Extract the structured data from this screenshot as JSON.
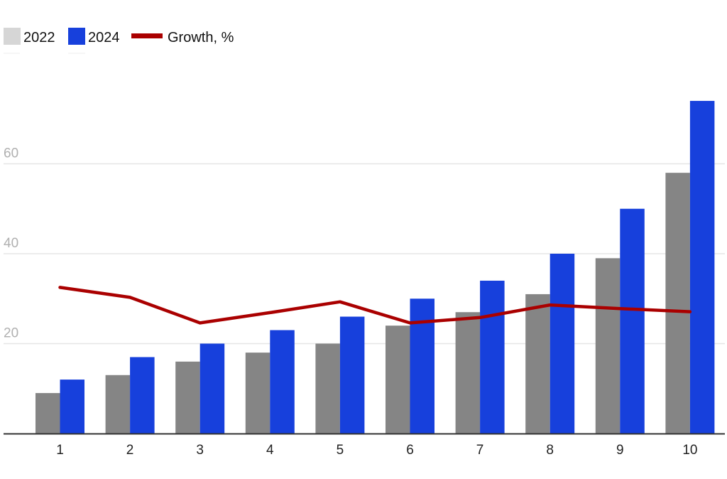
{
  "chart_data": {
    "type": "bar",
    "categories": [
      "1",
      "2",
      "3",
      "4",
      "5",
      "6",
      "7",
      "8",
      "9",
      "10"
    ],
    "series": [
      {
        "name": "2022",
        "type": "bar",
        "color": "#858585",
        "values": [
          9,
          13,
          16,
          18,
          20,
          24,
          27,
          31,
          39,
          58
        ]
      },
      {
        "name": "2024",
        "type": "bar",
        "color": "#1740dc",
        "values": [
          12,
          17,
          20,
          23,
          26,
          30,
          34,
          40,
          50,
          74
        ]
      },
      {
        "name": "Growth, %",
        "type": "line",
        "color": "#aa0000",
        "values": [
          32.5,
          30.3,
          24.6,
          26.9,
          29.3,
          24.6,
          25.8,
          28.6,
          27.8,
          27.1
        ]
      }
    ],
    "legend": {
      "position": "top-left",
      "entries": [
        {
          "label": "2022",
          "swatch_color": "#d6d6d6",
          "marker": "box"
        },
        {
          "label": "2024",
          "swatch_color": "#1740dc",
          "marker": "box"
        },
        {
          "label": "Growth, %",
          "swatch_color": "#aa0000",
          "marker": "line"
        }
      ]
    },
    "y_ticks": [
      "20",
      "40",
      "60"
    ],
    "ylim": [
      0,
      80
    ],
    "grid": true,
    "axis_color": "#333333",
    "grid_color": "#e6e6e6",
    "tick_label_color": "#b0b0b0",
    "x_tick_label_color": "#222222"
  }
}
